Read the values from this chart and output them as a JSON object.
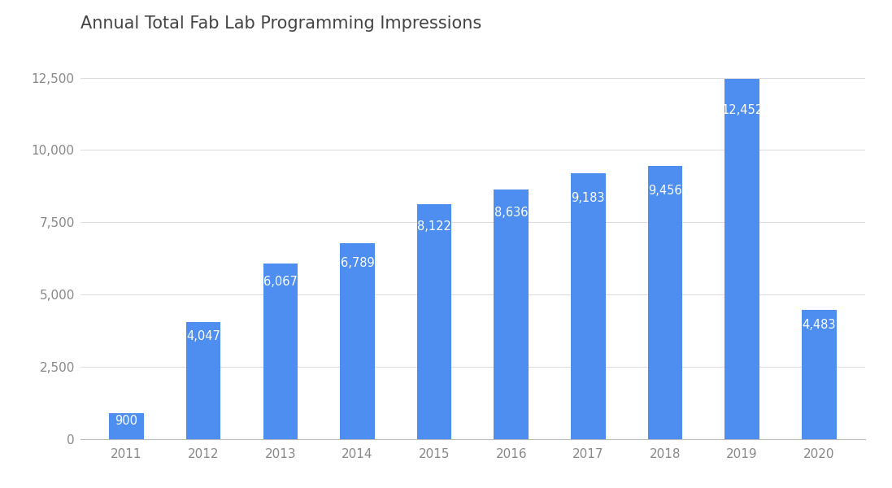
{
  "title": "Annual Total Fab Lab Programming Impressions",
  "categories": [
    "2011",
    "2012",
    "2013",
    "2014",
    "2015",
    "2016",
    "2017",
    "2018",
    "2019",
    "2020"
  ],
  "values": [
    900,
    4047,
    6067,
    6789,
    8122,
    8636,
    9183,
    9456,
    12452,
    4483
  ],
  "bar_color": "#4d8ef0",
  "label_color": "#ffffff",
  "background_color": "#ffffff",
  "grid_color": "#dddddd",
  "title_fontsize": 15,
  "label_fontsize": 10.5,
  "tick_fontsize": 11,
  "tick_color": "#888888",
  "ylim": [
    0,
    13500
  ],
  "yticks": [
    0,
    2500,
    5000,
    7500,
    10000,
    12500
  ],
  "bar_width": 0.45
}
